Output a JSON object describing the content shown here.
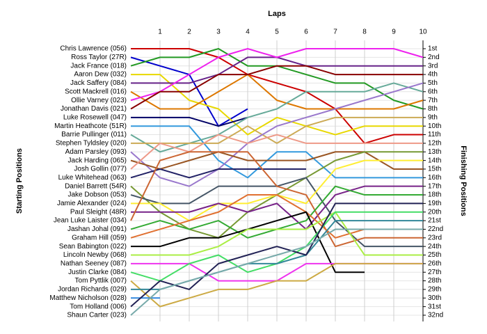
{
  "chart_data": {
    "type": "line",
    "title": "Laps",
    "y_label": "Starting Positions",
    "y2_label": "Finishing Positions",
    "x": [
      0,
      1,
      2,
      3,
      4,
      5,
      6,
      7,
      8,
      9,
      10
    ],
    "xlim": [
      0,
      10
    ],
    "xticks": [
      1,
      2,
      3,
      4,
      5,
      6,
      7,
      8,
      9,
      10
    ],
    "ylim": [
      1,
      32
    ],
    "inverted": true,
    "grid": true,
    "yticks": [
      {
        "value": 1,
        "label": "1st"
      },
      {
        "value": 2,
        "label": "2nd"
      },
      {
        "value": 3,
        "label": "3rd"
      },
      {
        "value": 4,
        "label": "4th"
      },
      {
        "value": 5,
        "label": "5th"
      },
      {
        "value": 6,
        "label": "6th"
      },
      {
        "value": 7,
        "label": "7th"
      },
      {
        "value": 8,
        "label": "8th"
      },
      {
        "value": 9,
        "label": "9th"
      },
      {
        "value": 10,
        "label": "10th"
      },
      {
        "value": 11,
        "label": "11th"
      },
      {
        "value": 12,
        "label": "12th"
      },
      {
        "value": 13,
        "label": "13th"
      },
      {
        "value": 14,
        "label": "14th"
      },
      {
        "value": 15,
        "label": "15th"
      },
      {
        "value": 16,
        "label": "16th"
      },
      {
        "value": 17,
        "label": "17th"
      },
      {
        "value": 18,
        "label": "18th"
      },
      {
        "value": 19,
        "label": "19th"
      },
      {
        "value": 20,
        "label": "20th"
      },
      {
        "value": 21,
        "label": "21st"
      },
      {
        "value": 22,
        "label": "22nd"
      },
      {
        "value": 23,
        "label": "23rd"
      },
      {
        "value": 24,
        "label": "24th"
      },
      {
        "value": 25,
        "label": "25th"
      },
      {
        "value": 26,
        "label": "26th"
      },
      {
        "value": 27,
        "label": "27th"
      },
      {
        "value": 28,
        "label": "28th"
      },
      {
        "value": 29,
        "label": "29th"
      },
      {
        "value": 30,
        "label": "30th"
      },
      {
        "value": 31,
        "label": "31st"
      },
      {
        "value": 32,
        "label": "32nd"
      }
    ],
    "series": [
      {
        "name": "Chris Lawrence (056)",
        "color": "#cc0000",
        "values": [
          1,
          1,
          1,
          2,
          4,
          5,
          6,
          8,
          12,
          11,
          11
        ]
      },
      {
        "name": "Ross Taylor (27R)",
        "color": "#0000cc",
        "values": [
          2,
          3,
          4,
          10,
          8,
          null,
          null,
          null,
          null,
          null,
          null
        ]
      },
      {
        "name": "Jack France (018)",
        "color": "#229922",
        "values": [
          3,
          2,
          2,
          1,
          3,
          3,
          4,
          5,
          5,
          7,
          8
        ]
      },
      {
        "name": "Aaron Dew (032)",
        "color": "#e8d800",
        "values": [
          4,
          4,
          7,
          8,
          11,
          9,
          10,
          11,
          10,
          10,
          10
        ]
      },
      {
        "name": "Jack Saffery (084)",
        "color": "#662288",
        "values": [
          5,
          5,
          5,
          4,
          2,
          2,
          3,
          3,
          3,
          3,
          3
        ]
      },
      {
        "name": "Scott Mackrell (016)",
        "color": "#dd7700",
        "values": [
          6,
          8,
          8,
          6,
          4,
          7,
          8,
          8,
          8,
          8,
          7
        ]
      },
      {
        "name": "Ollie Varney (023)",
        "color": "#ee22ee",
        "values": [
          7,
          6,
          4,
          2,
          1,
          2,
          1,
          1,
          1,
          1,
          2
        ]
      },
      {
        "name": "Jonathan Davis (021)",
        "color": "#880000",
        "values": [
          8,
          6,
          6,
          4,
          4,
          3,
          3,
          4,
          4,
          4,
          4
        ]
      },
      {
        "name": "Luke Rosewell (047)",
        "color": "#000066",
        "values": [
          9,
          9,
          9,
          10,
          9,
          null,
          null,
          null,
          null,
          null,
          null
        ]
      },
      {
        "name": "Martin Heathcote (51R)",
        "color": "#3399dd",
        "values": [
          10,
          10,
          10,
          14,
          16,
          13,
          13,
          16,
          16,
          16,
          16
        ]
      },
      {
        "name": "Barrie Pullinger (011)",
        "color": "#66aa99",
        "values": [
          11,
          13,
          12,
          11,
          9,
          8,
          6,
          6,
          6,
          5,
          6
        ]
      },
      {
        "name": "Stephen Tyldsley (020)",
        "color": "#ccaa55",
        "values": [
          12,
          12,
          12,
          12,
          10,
          12,
          10,
          9,
          9,
          9,
          9
        ]
      },
      {
        "name": "Adam Parsley (093)",
        "color": "#9977cc",
        "values": [
          13,
          16,
          17,
          15,
          12,
          10,
          9,
          8,
          7,
          6,
          5
        ]
      },
      {
        "name": "Jack Harding (065)",
        "color": "#995522",
        "values": [
          14,
          15,
          14,
          13,
          14,
          14,
          14,
          13,
          13,
          15,
          15
        ]
      },
      {
        "name": "Josh Gollin (077)",
        "color": "#ee9988",
        "values": [
          15,
          12,
          13,
          11,
          12,
          11,
          12,
          12,
          12,
          12,
          12
        ]
      },
      {
        "name": "Luke Whitehead (063)",
        "color": "#222266",
        "values": [
          16,
          15,
          16,
          15,
          15,
          15,
          15,
          null,
          null,
          null,
          null
        ]
      },
      {
        "name": "Daniel Barrett (54R)",
        "color": "#779933",
        "values": [
          17,
          20,
          22,
          23,
          20,
          18,
          16,
          14,
          13,
          13,
          13
        ]
      },
      {
        "name": "Jake Dobson (053)",
        "color": "#445566",
        "values": [
          18,
          19,
          19,
          17,
          17,
          17,
          16,
          21,
          24,
          24,
          24
        ]
      },
      {
        "name": "Jamie Alexander (024)",
        "color": "#ffee33",
        "values": [
          19,
          19,
          21,
          19,
          19,
          18,
          19,
          15,
          14,
          14,
          14
        ]
      },
      {
        "name": "Paul Sleight (48R)",
        "color": "#772288",
        "values": [
          20,
          20,
          20,
          19,
          20,
          19,
          22,
          18,
          17,
          17,
          17
        ]
      },
      {
        "name": "Jean Luke Laister (034)",
        "color": "#cc6633",
        "values": [
          21,
          14,
          13,
          13,
          13,
          17,
          18,
          24,
          23,
          23,
          23
        ]
      },
      {
        "name": "Jashan Johal (091)",
        "color": "#33aa33",
        "values": [
          22,
          21,
          22,
          21,
          23,
          22,
          21,
          17,
          18,
          18,
          18
        ]
      },
      {
        "name": "Graham Hill (059)",
        "color": "#e07030",
        "values": [
          23,
          22,
          21,
          20,
          18,
          18,
          20,
          23,
          22,
          22,
          22
        ]
      },
      {
        "name": "Sean Babington (022)",
        "color": "#000000",
        "values": [
          24,
          24,
          23,
          23,
          22,
          21,
          20,
          27,
          27,
          null,
          null
        ]
      },
      {
        "name": "Lincoln Newby (068)",
        "color": "#aaee44",
        "values": [
          25,
          25,
          25,
          24,
          22,
          22,
          22,
          20,
          25,
          25,
          25
        ]
      },
      {
        "name": "Nathan Seeney (087)",
        "color": "#ee33ee",
        "values": [
          26,
          26,
          26,
          28,
          28,
          28,
          26,
          26,
          26,
          26,
          26
        ]
      },
      {
        "name": "Justin Clarke (084)",
        "color": "#44dd66",
        "values": [
          27,
          28,
          26,
          25,
          27,
          26,
          24,
          20,
          20,
          20,
          20
        ]
      },
      {
        "name": "Tom Pyttlik (007)",
        "color": "#ccaa44",
        "values": [
          28,
          31,
          30,
          29,
          29,
          28,
          28,
          26,
          26,
          26,
          26
        ]
      },
      {
        "name": "Jordan Richards (029)",
        "color": "#338899",
        "values": [
          29,
          29,
          28,
          27,
          26,
          26,
          25,
          21,
          21,
          21,
          21
        ]
      },
      {
        "name": "Matthew Nicholson (028)",
        "color": "#3388dd",
        "values": [
          30,
          30,
          null,
          null,
          null,
          null,
          null,
          null,
          null,
          null,
          null
        ]
      },
      {
        "name": "Tom Holland (006)",
        "color": "#222255",
        "values": [
          31,
          28,
          29,
          26,
          25,
          24,
          25,
          19,
          19,
          19,
          19
        ]
      },
      {
        "name": "Shaun Carter (023)",
        "color": "#77aaaa",
        "values": [
          32,
          29,
          28,
          27,
          26,
          25,
          24,
          22,
          22,
          22,
          22
        ]
      }
    ]
  }
}
